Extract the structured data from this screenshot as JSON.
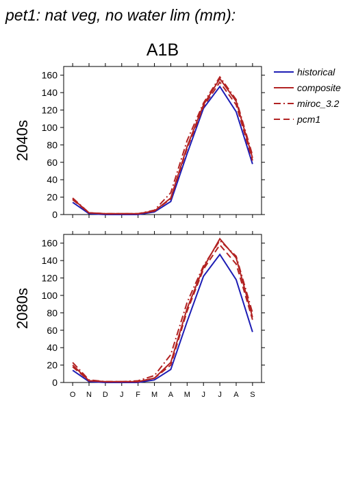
{
  "title": "pet1: nat veg, no water lim (mm):",
  "chart_data": [
    {
      "type": "line",
      "title": "A1B",
      "ylabel": "2040s",
      "ylim": [
        0,
        170
      ],
      "yticks": [
        0,
        20,
        40,
        60,
        80,
        100,
        120,
        140,
        160
      ],
      "series": [
        {
          "name": "historical",
          "color": "#1c1cb4",
          "linestyle": "solid",
          "values": [
            14,
            1,
            0,
            0,
            0,
            3,
            15,
            70,
            122,
            147,
            118,
            58
          ]
        },
        {
          "name": "composite",
          "color": "#b22222",
          "linestyle": "solid",
          "values": [
            18,
            2,
            1,
            1,
            1,
            4,
            19,
            78,
            126,
            156,
            130,
            65
          ]
        },
        {
          "name": "miroc_3.2",
          "color": "#b22222",
          "linestyle": "dashdot",
          "values": [
            19,
            2,
            1,
            1,
            1,
            5,
            25,
            85,
            128,
            158,
            132,
            68
          ]
        },
        {
          "name": "pcm1",
          "color": "#b22222",
          "linestyle": "dashed",
          "values": [
            17,
            2,
            1,
            1,
            1,
            4,
            18,
            76,
            124,
            152,
            126,
            62
          ]
        }
      ]
    },
    {
      "type": "line",
      "ylabel": "2080s",
      "categories": [
        "O",
        "N",
        "D",
        "J",
        "F",
        "M",
        "A",
        "M",
        "J",
        "J",
        "A",
        "S"
      ],
      "ylim": [
        0,
        170
      ],
      "yticks": [
        0,
        20,
        40,
        60,
        80,
        100,
        120,
        140,
        160
      ],
      "series": [
        {
          "name": "historical",
          "color": "#1c1cb4",
          "linestyle": "solid",
          "values": [
            14,
            1,
            0,
            0,
            0,
            3,
            15,
            70,
            122,
            147,
            118,
            58
          ]
        },
        {
          "name": "composite",
          "color": "#b22222",
          "linestyle": "solid",
          "values": [
            20,
            2,
            1,
            1,
            1,
            5,
            23,
            85,
            132,
            165,
            143,
            75
          ]
        },
        {
          "name": "miroc_3.2",
          "color": "#b22222",
          "linestyle": "dashdot",
          "values": [
            23,
            3,
            1,
            1,
            2,
            8,
            32,
            92,
            134,
            163,
            145,
            80
          ]
        },
        {
          "name": "pcm1",
          "color": "#b22222",
          "linestyle": "dashed",
          "values": [
            18,
            2,
            1,
            1,
            1,
            5,
            20,
            82,
            130,
            158,
            136,
            72
          ]
        }
      ]
    }
  ]
}
